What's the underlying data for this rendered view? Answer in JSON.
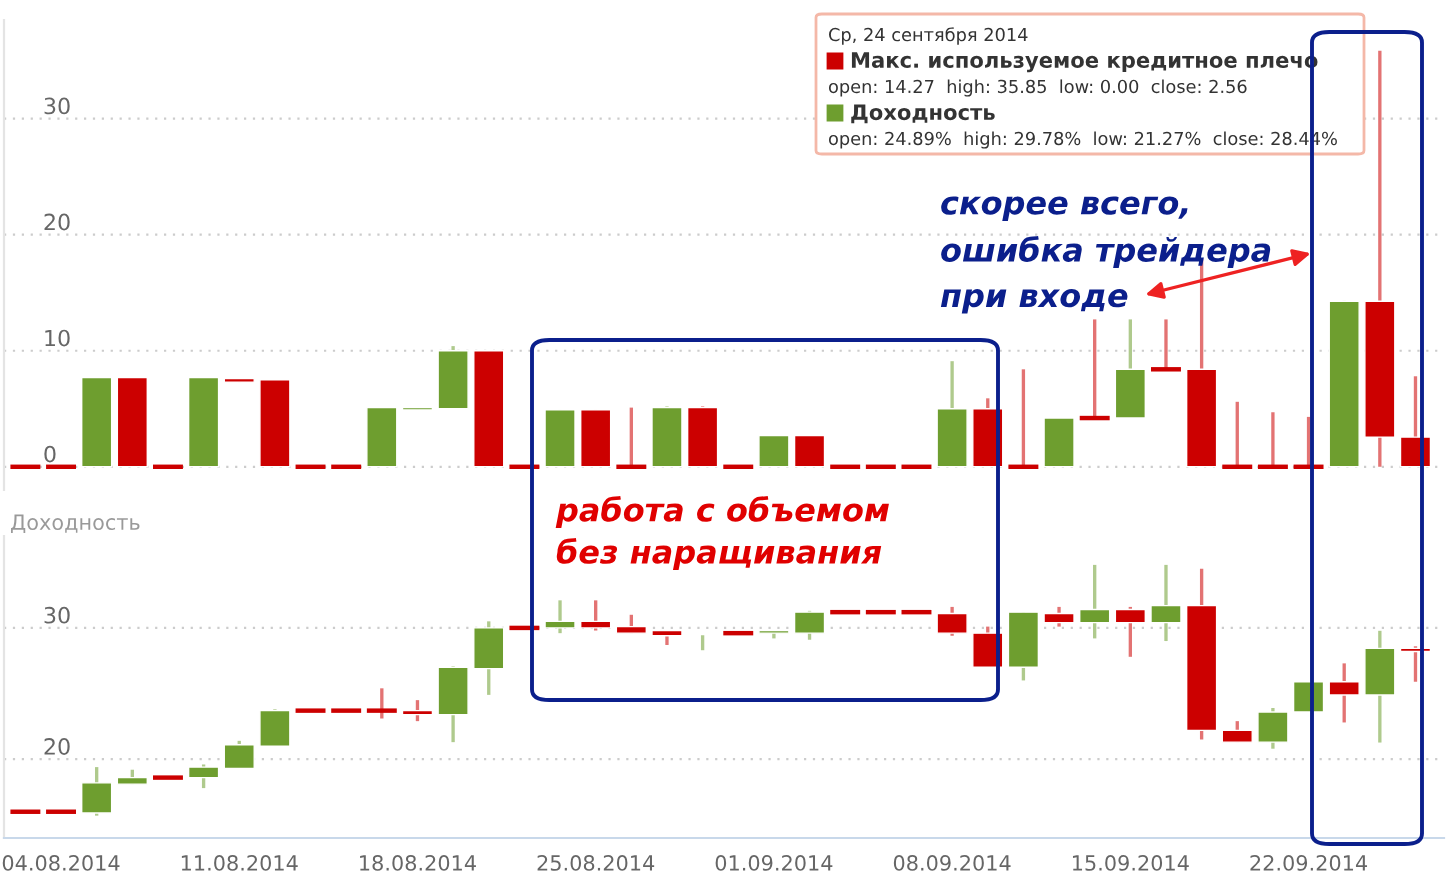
{
  "chart_data": [
    {
      "type": "candlestick",
      "tick_labels": "y",
      "grid": "y",
      "ylim": [
        -2,
        38.5
      ],
      "yticks": [
        0,
        10,
        20,
        30
      ],
      "categories": [
        null,
        "04.08.2014",
        null,
        null,
        null,
        null,
        "11.08.2014",
        null,
        null,
        null,
        null,
        "18.08.2014",
        null,
        null,
        null,
        null,
        "25.08.2014",
        null,
        null,
        null,
        null,
        "01.09.2014",
        null,
        null,
        null,
        null,
        "08.09.2014",
        null,
        null,
        null,
        null,
        "15.09.2014",
        null,
        null,
        null,
        null,
        "22.09.2014",
        null,
        null,
        null
      ],
      "ohlc": [
        [
          0,
          0,
          0,
          0
        ],
        [
          0,
          0,
          0,
          0
        ],
        [
          0,
          7.7,
          0,
          7.7
        ],
        [
          7.7,
          7.7,
          0,
          0
        ],
        [
          0,
          0,
          0,
          0
        ],
        [
          0,
          7.7,
          0,
          7.7
        ],
        [
          7.6,
          7.6,
          7.3,
          7.3
        ],
        [
          7.5,
          7.5,
          0,
          0
        ],
        [
          0,
          0,
          0,
          0
        ],
        [
          0,
          0,
          0,
          0
        ],
        [
          0,
          5.1,
          0,
          5.1
        ],
        [
          4.9,
          5.1,
          4.9,
          5.1
        ],
        [
          5.0,
          10.4,
          5.0,
          10.0
        ],
        [
          10.0,
          10.0,
          0,
          0
        ],
        [
          0,
          0,
          0,
          0
        ],
        [
          0,
          4.9,
          0,
          4.9
        ],
        [
          4.9,
          4.9,
          0,
          0
        ],
        [
          0,
          5.1,
          0,
          0
        ],
        [
          0,
          5.2,
          0,
          5.1
        ],
        [
          5.1,
          5.2,
          0,
          0
        ],
        [
          0,
          0,
          0,
          0
        ],
        [
          0,
          2.7,
          0,
          2.7
        ],
        [
          2.7,
          2.7,
          0,
          0
        ],
        [
          0,
          0,
          0,
          0
        ],
        [
          0,
          0,
          0,
          0
        ],
        [
          0,
          0,
          0,
          0
        ],
        [
          0,
          9.1,
          0,
          5.0
        ],
        [
          5.0,
          5.9,
          0,
          0
        ],
        [
          0,
          8.4,
          0,
          0
        ],
        [
          0,
          4.2,
          0,
          4.2
        ],
        [
          4.2,
          12.7,
          4.2,
          4.2
        ],
        [
          4.2,
          12.7,
          4.2,
          8.4
        ],
        [
          8.4,
          12.7,
          8.4,
          8.4
        ],
        [
          8.4,
          17.9,
          0,
          0
        ],
        [
          0,
          5.6,
          0,
          0
        ],
        [
          0,
          4.7,
          0,
          0
        ],
        [
          0,
          4.3,
          0,
          0
        ],
        [
          0,
          14.3,
          0,
          14.27
        ],
        [
          14.27,
          35.85,
          0,
          2.56
        ],
        [
          2.56,
          7.8,
          0,
          0
        ]
      ],
      "colors": [
        "#cc0000",
        "#cc0000",
        "#6e9e2f",
        "#cc0000",
        "#cc0000",
        "#6e9e2f",
        "#cc0000",
        "#cc0000",
        "#cc0000",
        "#cc0000",
        "#6e9e2f",
        "#6e9e2f",
        "#6e9e2f",
        "#cc0000",
        "#cc0000",
        "#6e9e2f",
        "#cc0000",
        "#cc0000",
        "#6e9e2f",
        "#cc0000",
        "#cc0000",
        "#6e9e2f",
        "#cc0000",
        "#cc0000",
        "#cc0000",
        "#cc0000",
        "#6e9e2f",
        "#cc0000",
        "#cc0000",
        "#6e9e2f",
        "#cc0000",
        "#6e9e2f",
        "#cc0000",
        "#cc0000",
        "#cc0000",
        "#cc0000",
        "#cc0000",
        "#6e9e2f",
        "#cc0000",
        "#cc0000"
      ],
      "annotations": [
        "скорее всего,\nошибка трейдера\nпри входе"
      ]
    },
    {
      "type": "candlestick",
      "grid": "y",
      "ylabel": "Доходность",
      "ylim": [
        14,
        37
      ],
      "yticks": [
        20,
        30
      ],
      "categories": [
        null,
        "04.08.2014",
        null,
        null,
        null,
        null,
        "11.08.2014",
        null,
        null,
        null,
        null,
        "18.08.2014",
        null,
        null,
        null,
        null,
        "25.08.2014",
        null,
        null,
        null,
        null,
        "01.09.2014",
        null,
        null,
        null,
        null,
        "08.09.2014",
        null,
        null,
        null,
        null,
        "15.09.2014",
        null,
        null,
        null,
        null,
        "22.09.2014",
        null,
        null,
        null
      ],
      "ohlc": [
        [
          16.0,
          16.0,
          16.0,
          16.0
        ],
        [
          16.0,
          16.0,
          16.0,
          16.0
        ],
        [
          15.9,
          19.4,
          15.7,
          18.2
        ],
        [
          18.1,
          19.2,
          18.1,
          18.6
        ],
        [
          18.6,
          18.6,
          18.6,
          18.6
        ],
        [
          18.6,
          19.6,
          17.8,
          19.4
        ],
        [
          19.3,
          21.4,
          19.3,
          21.1
        ],
        [
          21.0,
          23.8,
          21.0,
          23.7
        ],
        [
          23.7,
          23.7,
          23.7,
          23.7
        ],
        [
          23.7,
          23.7,
          23.7,
          23.7
        ],
        [
          23.7,
          25.4,
          23.1,
          23.7
        ],
        [
          23.7,
          24.5,
          22.9,
          23.4
        ],
        [
          23.4,
          27.1,
          21.3,
          27.0
        ],
        [
          26.9,
          30.5,
          24.9,
          30.0
        ],
        [
          30.0,
          30.0,
          30.0,
          30.0
        ],
        [
          30.0,
          32.1,
          29.6,
          30.5
        ],
        [
          30.5,
          32.1,
          29.8,
          30.0
        ],
        [
          30.1,
          31.0,
          29.6,
          29.6
        ],
        [
          29.8,
          29.8,
          28.7,
          29.4
        ],
        [
          29.5,
          29.6,
          28.3,
          29.6
        ],
        [
          29.6,
          29.6,
          29.6,
          29.6
        ],
        [
          29.6,
          29.8,
          29.2,
          29.8
        ],
        [
          29.6,
          31.3,
          29.1,
          31.2
        ],
        [
          31.2,
          31.2,
          31.2,
          31.2
        ],
        [
          31.2,
          31.2,
          31.2,
          31.2
        ],
        [
          31.2,
          31.2,
          31.2,
          31.2
        ],
        [
          31.1,
          31.6,
          29.4,
          29.6
        ],
        [
          29.6,
          30.1,
          27.0,
          27.0
        ],
        [
          27.0,
          31.2,
          26.0,
          31.2
        ],
        [
          31.1,
          31.6,
          30.1,
          30.4
        ],
        [
          30.4,
          34.8,
          29.2,
          31.4
        ],
        [
          31.4,
          31.6,
          27.8,
          30.4
        ],
        [
          30.4,
          34.8,
          29.0,
          31.7
        ],
        [
          31.7,
          34.5,
          21.5,
          22.2
        ],
        [
          22.2,
          22.9,
          21.3,
          21.3
        ],
        [
          21.3,
          23.9,
          20.8,
          23.6
        ],
        [
          23.6,
          25.9,
          23.6,
          25.9
        ],
        [
          25.9,
          27.3,
          22.8,
          24.89
        ],
        [
          24.89,
          29.78,
          21.27,
          28.44
        ],
        [
          28.44,
          28.6,
          25.9,
          28.2
        ]
      ],
      "colors": [
        "#cc0000",
        "#cc0000",
        "#6e9e2f",
        "#6e9e2f",
        "#cc0000",
        "#6e9e2f",
        "#6e9e2f",
        "#6e9e2f",
        "#cc0000",
        "#cc0000",
        "#cc0000",
        "#cc0000",
        "#6e9e2f",
        "#6e9e2f",
        "#cc0000",
        "#6e9e2f",
        "#cc0000",
        "#cc0000",
        "#cc0000",
        "#6e9e2f",
        "#cc0000",
        "#6e9e2f",
        "#6e9e2f",
        "#cc0000",
        "#cc0000",
        "#cc0000",
        "#cc0000",
        "#cc0000",
        "#6e9e2f",
        "#cc0000",
        "#6e9e2f",
        "#cc0000",
        "#6e9e2f",
        "#cc0000",
        "#cc0000",
        "#6e9e2f",
        "#6e9e2f",
        "#cc0000",
        "#6e9e2f",
        "#cc0000"
      ],
      "annotations": [
        "работа с объемом\nбез наращивания"
      ]
    },
    {
      "type": "other",
      "annotations": [
        "Ср, 24 сентября 2014",
        "Макс. используемое кредитное плечо",
        "open: 14.27  high: 35.85  low: 0.00  close: 2.56",
        "Доходность",
        "open: 24.89%  high: 29.78%  low: 21.27%  close: 28.44%"
      ],
      "colors": [
        null,
        "#cc0000",
        null,
        "#6e9e2f",
        null
      ]
    }
  ]
}
